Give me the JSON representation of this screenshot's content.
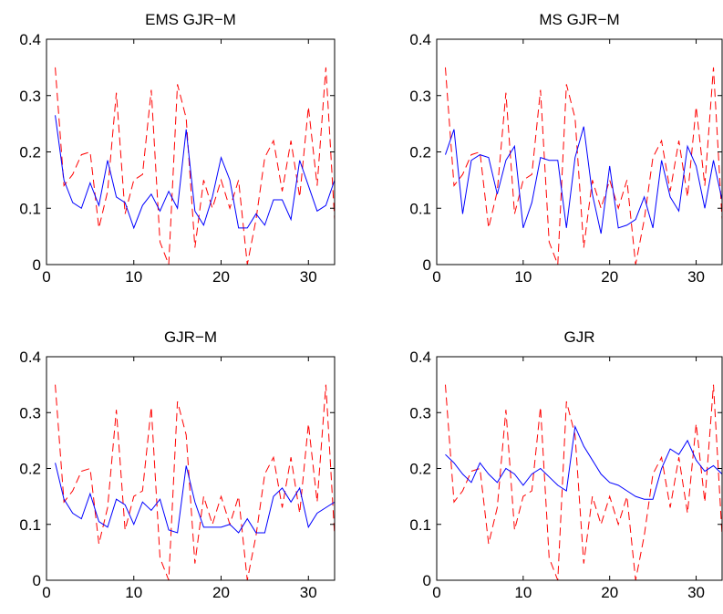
{
  "chart_data": [
    {
      "type": "line",
      "title": "EMS GJR−M",
      "x": [
        1,
        2,
        3,
        4,
        5,
        6,
        7,
        8,
        9,
        10,
        11,
        12,
        13,
        14,
        15,
        16,
        17,
        18,
        19,
        20,
        21,
        22,
        23,
        24,
        25,
        26,
        27,
        28,
        29,
        30,
        31,
        32,
        33
      ],
      "series": [
        {
          "color": "#ff0000",
          "line_style": "dashed",
          "values": [
            0.35,
            0.14,
            0.16,
            0.195,
            0.2,
            0.065,
            0.13,
            0.305,
            0.09,
            0.15,
            0.16,
            0.31,
            0.04,
            0.0,
            0.32,
            0.26,
            0.03,
            0.15,
            0.1,
            0.15,
            0.1,
            0.15,
            0.0,
            0.08,
            0.19,
            0.22,
            0.13,
            0.22,
            0.12,
            0.28,
            0.14,
            0.35,
            0.08
          ]
        },
        {
          "color": "#0000ff",
          "line_style": "solid",
          "values": [
            0.265,
            0.15,
            0.11,
            0.1,
            0.145,
            0.105,
            0.185,
            0.12,
            0.11,
            0.065,
            0.105,
            0.125,
            0.095,
            0.13,
            0.1,
            0.24,
            0.095,
            0.07,
            0.12,
            0.19,
            0.15,
            0.065,
            0.065,
            0.09,
            0.07,
            0.115,
            0.115,
            0.08,
            0.185,
            0.14,
            0.095,
            0.105,
            0.15
          ]
        }
      ],
      "xlim": [
        0,
        33
      ],
      "xticks": [
        0,
        10,
        20,
        30
      ],
      "ylim": [
        0,
        0.4
      ],
      "yticks": [
        0,
        0.1,
        0.2,
        0.3,
        0.4
      ]
    },
    {
      "type": "line",
      "title": "MS GJR−M",
      "x": [
        1,
        2,
        3,
        4,
        5,
        6,
        7,
        8,
        9,
        10,
        11,
        12,
        13,
        14,
        15,
        16,
        17,
        18,
        19,
        20,
        21,
        22,
        23,
        24,
        25,
        26,
        27,
        28,
        29,
        30,
        31,
        32,
        33
      ],
      "series": [
        {
          "color": "#ff0000",
          "line_style": "dashed",
          "values": [
            0.35,
            0.14,
            0.16,
            0.195,
            0.2,
            0.065,
            0.13,
            0.305,
            0.09,
            0.15,
            0.16,
            0.31,
            0.04,
            0.0,
            0.32,
            0.26,
            0.03,
            0.15,
            0.1,
            0.15,
            0.1,
            0.15,
            0.0,
            0.08,
            0.19,
            0.22,
            0.13,
            0.22,
            0.12,
            0.28,
            0.14,
            0.35,
            0.08
          ]
        },
        {
          "color": "#0000ff",
          "line_style": "solid",
          "values": [
            0.195,
            0.24,
            0.09,
            0.185,
            0.195,
            0.19,
            0.125,
            0.185,
            0.21,
            0.065,
            0.11,
            0.19,
            0.185,
            0.185,
            0.065,
            0.19,
            0.245,
            0.125,
            0.055,
            0.175,
            0.065,
            0.07,
            0.08,
            0.12,
            0.065,
            0.185,
            0.12,
            0.095,
            0.21,
            0.175,
            0.1,
            0.185,
            0.115
          ]
        }
      ],
      "xlim": [
        0,
        33
      ],
      "xticks": [
        0,
        10,
        20,
        30
      ],
      "ylim": [
        0,
        0.4
      ],
      "yticks": [
        0,
        0.1,
        0.2,
        0.3,
        0.4
      ]
    },
    {
      "type": "line",
      "title": "GJR−M",
      "x": [
        1,
        2,
        3,
        4,
        5,
        6,
        7,
        8,
        9,
        10,
        11,
        12,
        13,
        14,
        15,
        16,
        17,
        18,
        19,
        20,
        21,
        22,
        23,
        24,
        25,
        26,
        27,
        28,
        29,
        30,
        31,
        32,
        33
      ],
      "series": [
        {
          "color": "#ff0000",
          "line_style": "dashed",
          "values": [
            0.35,
            0.14,
            0.16,
            0.195,
            0.2,
            0.065,
            0.13,
            0.305,
            0.09,
            0.15,
            0.16,
            0.31,
            0.04,
            0.0,
            0.32,
            0.26,
            0.03,
            0.15,
            0.1,
            0.15,
            0.1,
            0.15,
            0.0,
            0.08,
            0.19,
            0.22,
            0.13,
            0.22,
            0.12,
            0.28,
            0.14,
            0.35,
            0.08
          ]
        },
        {
          "color": "#0000ff",
          "line_style": "solid",
          "values": [
            0.21,
            0.145,
            0.12,
            0.11,
            0.155,
            0.105,
            0.095,
            0.145,
            0.135,
            0.1,
            0.14,
            0.125,
            0.145,
            0.09,
            0.085,
            0.205,
            0.14,
            0.095,
            0.095,
            0.095,
            0.1,
            0.085,
            0.11,
            0.085,
            0.085,
            0.15,
            0.165,
            0.14,
            0.165,
            0.095,
            0.12,
            0.13,
            0.14
          ]
        }
      ],
      "xlim": [
        0,
        33
      ],
      "xticks": [
        0,
        10,
        20,
        30
      ],
      "ylim": [
        0,
        0.4
      ],
      "yticks": [
        0,
        0.1,
        0.2,
        0.3,
        0.4
      ]
    },
    {
      "type": "line",
      "title": "GJR",
      "x": [
        1,
        2,
        3,
        4,
        5,
        6,
        7,
        8,
        9,
        10,
        11,
        12,
        13,
        14,
        15,
        16,
        17,
        18,
        19,
        20,
        21,
        22,
        23,
        24,
        25,
        26,
        27,
        28,
        29,
        30,
        31,
        32,
        33
      ],
      "series": [
        {
          "color": "#ff0000",
          "line_style": "dashed",
          "values": [
            0.35,
            0.14,
            0.16,
            0.195,
            0.2,
            0.065,
            0.13,
            0.305,
            0.09,
            0.15,
            0.16,
            0.31,
            0.04,
            0.0,
            0.32,
            0.26,
            0.03,
            0.15,
            0.1,
            0.15,
            0.1,
            0.15,
            0.0,
            0.08,
            0.19,
            0.22,
            0.13,
            0.22,
            0.12,
            0.28,
            0.14,
            0.35,
            0.08
          ]
        },
        {
          "color": "#0000ff",
          "line_style": "solid",
          "values": [
            0.225,
            0.21,
            0.19,
            0.175,
            0.21,
            0.19,
            0.175,
            0.2,
            0.19,
            0.17,
            0.19,
            0.2,
            0.185,
            0.17,
            0.16,
            0.275,
            0.24,
            0.215,
            0.19,
            0.175,
            0.17,
            0.16,
            0.15,
            0.145,
            0.145,
            0.2,
            0.235,
            0.225,
            0.25,
            0.215,
            0.195,
            0.205,
            0.19
          ]
        }
      ],
      "xlim": [
        0,
        33
      ],
      "xticks": [
        0,
        10,
        20,
        30
      ],
      "ylim": [
        0,
        0.4
      ],
      "yticks": [
        0,
        0.1,
        0.2,
        0.3,
        0.4
      ]
    }
  ]
}
